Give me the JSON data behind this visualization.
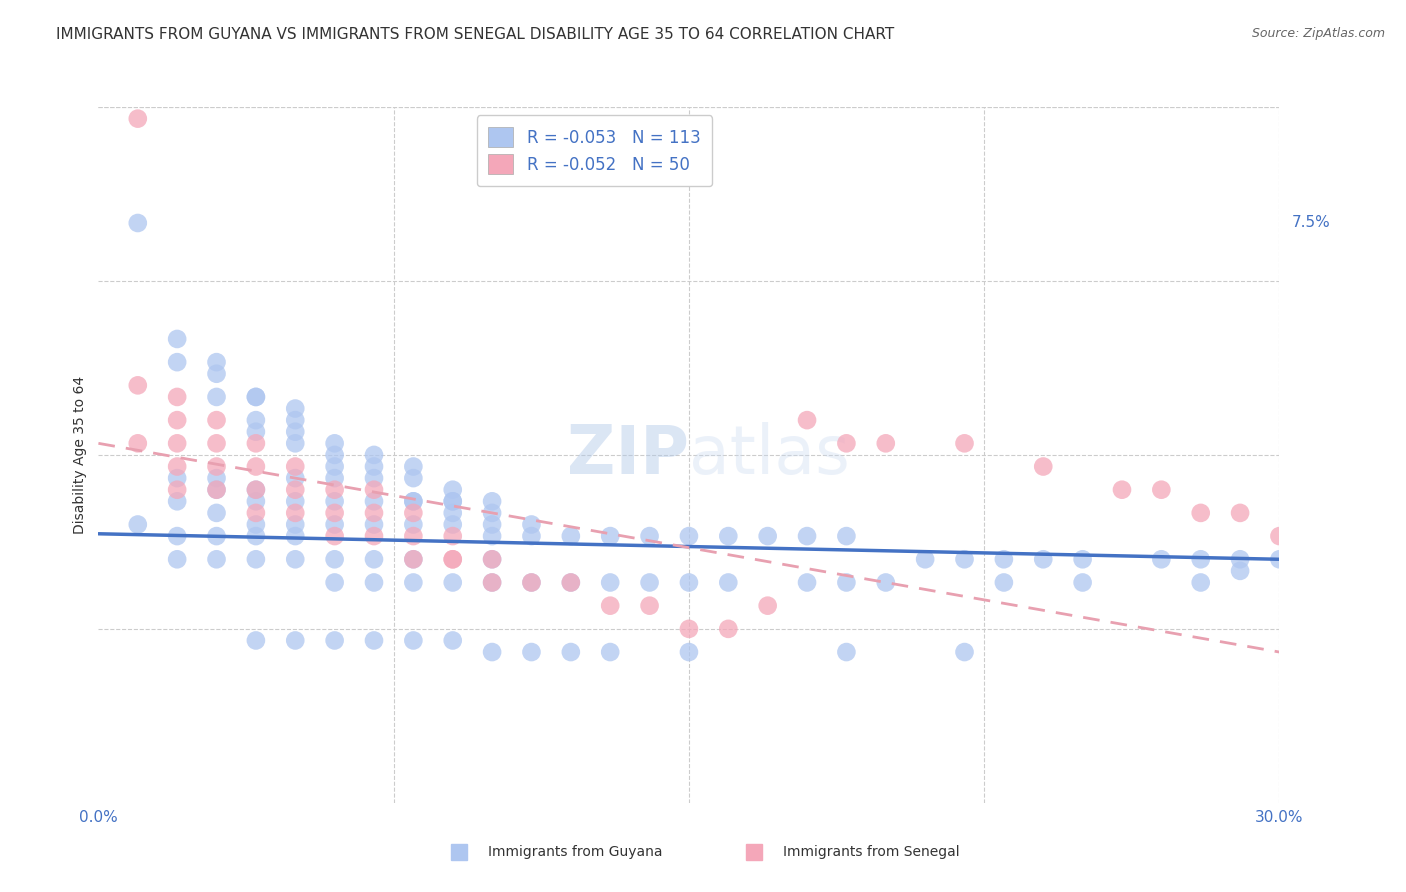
{
  "title": "IMMIGRANTS FROM GUYANA VS IMMIGRANTS FROM SENEGAL DISABILITY AGE 35 TO 64 CORRELATION CHART",
  "source": "Source: ZipAtlas.com",
  "ylabel": "Disability Age 35 to 64",
  "xlim": [
    0.0,
    0.3
  ],
  "ylim": [
    0.0,
    0.3
  ],
  "ytick_values": [
    0.0,
    0.075,
    0.15,
    0.225,
    0.3
  ],
  "xtick_values": [
    0.0,
    0.075,
    0.15,
    0.225,
    0.3
  ],
  "legend_label_guyana": "R = -0.053   N = 113",
  "legend_label_senegal": "R = -0.052   N = 50",
  "guyana_color": "#aec6f0",
  "senegal_color": "#f4a7b9",
  "guyana_line_color": "#4472c4",
  "senegal_line_color": "#e8a0b0",
  "watermark": "ZIPatlas",
  "guyana_x": [
    0.01,
    0.02,
    0.03,
    0.02,
    0.03,
    0.04,
    0.03,
    0.04,
    0.05,
    0.04,
    0.05,
    0.04,
    0.05,
    0.06,
    0.05,
    0.06,
    0.07,
    0.06,
    0.07,
    0.08,
    0.07,
    0.08,
    0.09,
    0.08,
    0.09,
    0.1,
    0.09,
    0.1,
    0.11,
    0.1,
    0.02,
    0.02,
    0.03,
    0.03,
    0.03,
    0.04,
    0.04,
    0.04,
    0.05,
    0.05,
    0.05,
    0.06,
    0.06,
    0.06,
    0.07,
    0.07,
    0.08,
    0.08,
    0.09,
    0.09,
    0.01,
    0.02,
    0.02,
    0.03,
    0.03,
    0.04,
    0.04,
    0.05,
    0.05,
    0.06,
    0.06,
    0.07,
    0.07,
    0.08,
    0.08,
    0.09,
    0.1,
    0.1,
    0.11,
    0.12,
    0.13,
    0.14,
    0.15,
    0.16,
    0.18,
    0.19,
    0.2,
    0.23,
    0.25,
    0.28,
    0.1,
    0.11,
    0.12,
    0.13,
    0.14,
    0.15,
    0.16,
    0.17,
    0.18,
    0.19,
    0.21,
    0.22,
    0.23,
    0.24,
    0.25,
    0.27,
    0.28,
    0.29,
    0.29,
    0.3,
    0.04,
    0.05,
    0.06,
    0.07,
    0.08,
    0.09,
    0.1,
    0.11,
    0.12,
    0.13,
    0.15,
    0.19,
    0.22
  ],
  "guyana_y": [
    0.25,
    0.2,
    0.19,
    0.19,
    0.185,
    0.175,
    0.175,
    0.175,
    0.17,
    0.165,
    0.165,
    0.16,
    0.16,
    0.155,
    0.155,
    0.15,
    0.15,
    0.145,
    0.145,
    0.145,
    0.14,
    0.14,
    0.135,
    0.13,
    0.13,
    0.13,
    0.125,
    0.125,
    0.12,
    0.12,
    0.14,
    0.13,
    0.14,
    0.135,
    0.125,
    0.135,
    0.13,
    0.12,
    0.14,
    0.13,
    0.12,
    0.14,
    0.13,
    0.12,
    0.13,
    0.12,
    0.13,
    0.12,
    0.13,
    0.12,
    0.12,
    0.115,
    0.105,
    0.115,
    0.105,
    0.115,
    0.105,
    0.115,
    0.105,
    0.105,
    0.095,
    0.105,
    0.095,
    0.105,
    0.095,
    0.095,
    0.105,
    0.095,
    0.095,
    0.095,
    0.095,
    0.095,
    0.095,
    0.095,
    0.095,
    0.095,
    0.095,
    0.095,
    0.095,
    0.095,
    0.115,
    0.115,
    0.115,
    0.115,
    0.115,
    0.115,
    0.115,
    0.115,
    0.115,
    0.115,
    0.105,
    0.105,
    0.105,
    0.105,
    0.105,
    0.105,
    0.105,
    0.105,
    0.1,
    0.105,
    0.07,
    0.07,
    0.07,
    0.07,
    0.07,
    0.07,
    0.065,
    0.065,
    0.065,
    0.065,
    0.065,
    0.065,
    0.065
  ],
  "senegal_x": [
    0.01,
    0.01,
    0.02,
    0.02,
    0.02,
    0.03,
    0.03,
    0.03,
    0.04,
    0.04,
    0.04,
    0.05,
    0.05,
    0.06,
    0.06,
    0.07,
    0.07,
    0.08,
    0.08,
    0.09,
    0.09,
    0.1,
    0.1,
    0.11,
    0.12,
    0.13,
    0.14,
    0.15,
    0.16,
    0.17,
    0.18,
    0.19,
    0.2,
    0.22,
    0.24,
    0.26,
    0.27,
    0.28,
    0.29,
    0.3,
    0.01,
    0.02,
    0.02,
    0.03,
    0.04,
    0.05,
    0.06,
    0.07,
    0.08,
    0.09
  ],
  "senegal_y": [
    0.295,
    0.18,
    0.175,
    0.165,
    0.155,
    0.165,
    0.155,
    0.145,
    0.155,
    0.145,
    0.135,
    0.145,
    0.135,
    0.135,
    0.125,
    0.135,
    0.125,
    0.125,
    0.115,
    0.115,
    0.105,
    0.105,
    0.095,
    0.095,
    0.095,
    0.085,
    0.085,
    0.075,
    0.075,
    0.085,
    0.165,
    0.155,
    0.155,
    0.155,
    0.145,
    0.135,
    0.135,
    0.125,
    0.125,
    0.115,
    0.155,
    0.145,
    0.135,
    0.135,
    0.125,
    0.125,
    0.115,
    0.115,
    0.105,
    0.105
  ],
  "guyana_line_start_x": 0.0,
  "guyana_line_start_y": 0.116,
  "guyana_line_end_x": 0.3,
  "guyana_line_end_y": 0.105,
  "senegal_line_start_x": 0.0,
  "senegal_line_start_y": 0.155,
  "senegal_line_end_x": 0.3,
  "senegal_line_end_y": 0.065,
  "title_fontsize": 11,
  "axis_label_fontsize": 10,
  "tick_fontsize": 11,
  "legend_fontsize": 12,
  "source_fontsize": 9,
  "watermark_fontsize": 48,
  "background_color": "#ffffff",
  "grid_color": "#cccccc",
  "tick_color": "#4472c4",
  "title_color": "#333333",
  "source_color": "#666666"
}
